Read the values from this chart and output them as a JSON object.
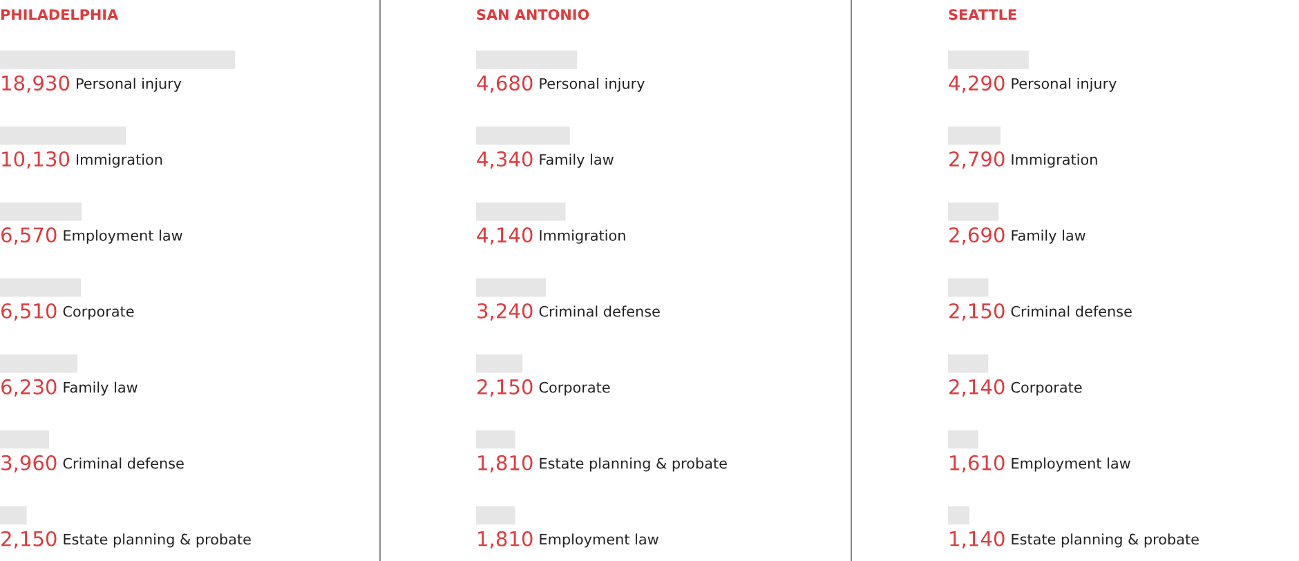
{
  "chart_data": [
    {
      "type": "bar",
      "orientation": "horizontal",
      "title": "PHILADELPHIA",
      "categories": [
        "Personal injury",
        "Immigration",
        "Employment law",
        "Corporate",
        "Family law",
        "Criminal defense",
        "Estate planning & probate"
      ],
      "values": [
        18930,
        10130,
        6570,
        6510,
        6230,
        3960,
        2150
      ],
      "value_labels": [
        "18,930",
        "10,130",
        "6,570",
        "6,510",
        "6,230",
        "3,960",
        "2,150"
      ],
      "color": "#e6e6e6"
    },
    {
      "type": "bar",
      "orientation": "horizontal",
      "title": "SAN ANTONIO",
      "categories": [
        "Personal injury",
        "Family law",
        "Immigration",
        "Criminal defense",
        "Corporate",
        "Estate planning & probate",
        "Employment law"
      ],
      "values": [
        4680,
        4340,
        4140,
        3240,
        2150,
        1810,
        1810
      ],
      "value_labels": [
        "4,680",
        "4,340",
        "4,140",
        "3,240",
        "2,150",
        "1,810",
        "1,810"
      ],
      "color": "#e6e6e6"
    },
    {
      "type": "bar",
      "orientation": "horizontal",
      "title": "SEATTLE",
      "categories": [
        "Personal injury",
        "Immigration",
        "Family law",
        "Criminal defense",
        "Corporate",
        "Employment law",
        "Estate planning & probate"
      ],
      "values": [
        4290,
        2790,
        2690,
        2150,
        2140,
        1610,
        1140
      ],
      "value_labels": [
        "4,290",
        "2,790",
        "2,690",
        "2,150",
        "2,140",
        "1,610",
        "1,140"
      ],
      "color": "#e6e6e6"
    }
  ]
}
